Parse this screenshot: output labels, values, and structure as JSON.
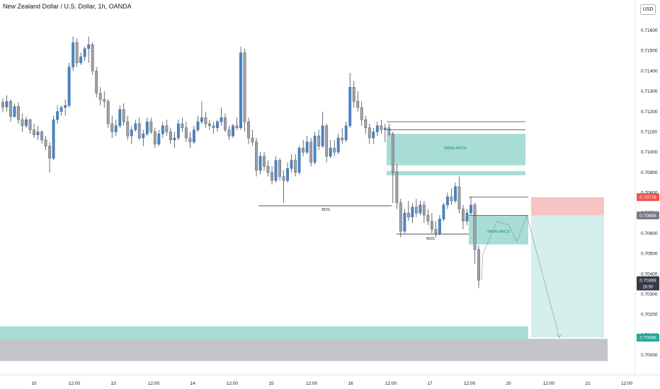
{
  "header": {
    "title": "New Zealand Dollar / U.S. Dollar, 1h, OANDA",
    "currency": "USD"
  },
  "chart_data": {
    "type": "candlestick",
    "title": "New Zealand Dollar / U.S. Dollar, 1h, OANDA",
    "ylim": [
      0.6993,
      0.7172
    ],
    "y_ticks": [
      "0.71600",
      "0.71500",
      "0.71400",
      "0.71300",
      "0.71200",
      "0.71100",
      "0.71000",
      "0.70900",
      "0.70800",
      "0.70700",
      "0.70600",
      "0.70500",
      "0.70400",
      "0.70300",
      "0.70200",
      "0.70100",
      "0.70000"
    ],
    "x_ticks": [
      "10",
      "12:00",
      "13",
      "12:00",
      "14",
      "12:00",
      "15",
      "12:00",
      "16",
      "12:00",
      "17",
      "12:00",
      "20",
      "12:00",
      "21",
      "12:00"
    ],
    "price_labels": [
      {
        "value": 0.70778,
        "text": "0.70778",
        "color": "#ef5350"
      },
      {
        "value": 0.70688,
        "text": "0.70688",
        "color": "#787b86"
      },
      {
        "value": 0.70369,
        "text": "0.70369",
        "sub": "26:50",
        "color": "#363a45"
      },
      {
        "value": 0.70086,
        "text": "0.70086",
        "color": "#26a69a"
      }
    ],
    "annotations": [
      {
        "type": "line",
        "label": "BOS",
        "y": 0.7077,
        "x_from": 0.7091,
        "x_to": 0.7077
      },
      {
        "type": "label",
        "text": "BOS"
      },
      {
        "type": "label",
        "text": "IMBALANCE"
      },
      {
        "type": "label",
        "text": "IMBALANCE"
      }
    ],
    "zones": [
      {
        "name": "imbalance-upper",
        "y_top": 0.7109,
        "y_bottom": 0.70935,
        "color": "#a8ddd6"
      },
      {
        "name": "imbalance-lower",
        "y_top": 0.7069,
        "y_bottom": 0.70545,
        "color": "#a8ddd6"
      },
      {
        "name": "support-zone",
        "y_top": 0.70142,
        "y_bottom": 0.7008,
        "color": "#a8ddd6"
      },
      {
        "name": "demand-zone",
        "y_top": 0.7008,
        "y_bottom": 0.6997,
        "color": "#c4c5c9"
      },
      {
        "name": "stop-zone",
        "y_top": 0.70778,
        "y_bottom": 0.70688,
        "color": "#f7c4c4"
      },
      {
        "name": "target-zone",
        "y_top": 0.70688,
        "y_bottom": 0.70086,
        "color": "#d5efec"
      }
    ],
    "candles": [
      [
        0.71245,
        0.71265,
        0.71195,
        0.71222
      ],
      [
        0.71222,
        0.7128,
        0.712,
        0.7125
      ],
      [
        0.7125,
        0.7126,
        0.7115,
        0.71175
      ],
      [
        0.71175,
        0.7124,
        0.7117,
        0.71225
      ],
      [
        0.71225,
        0.71245,
        0.7114,
        0.7116
      ],
      [
        0.7116,
        0.7119,
        0.711,
        0.7113
      ],
      [
        0.7113,
        0.71175,
        0.7112,
        0.7116
      ],
      [
        0.7116,
        0.71165,
        0.7109,
        0.7111
      ],
      [
        0.7111,
        0.7114,
        0.7107,
        0.71085
      ],
      [
        0.71085,
        0.7113,
        0.7106,
        0.711
      ],
      [
        0.711,
        0.7111,
        0.7104,
        0.7106
      ],
      [
        0.7106,
        0.7108,
        0.7101,
        0.7103
      ],
      [
        0.7103,
        0.7105,
        0.709,
        0.7097
      ],
      [
        0.7097,
        0.7118,
        0.7096,
        0.7116
      ],
      [
        0.7116,
        0.7123,
        0.7114,
        0.712
      ],
      [
        0.712,
        0.7123,
        0.7118,
        0.7122
      ],
      [
        0.7122,
        0.7126,
        0.7118,
        0.7123
      ],
      [
        0.7123,
        0.7144,
        0.7122,
        0.7142
      ],
      [
        0.7142,
        0.7157,
        0.714,
        0.7154
      ],
      [
        0.7154,
        0.7156,
        0.7142,
        0.7144
      ],
      [
        0.7144,
        0.7149,
        0.7143,
        0.7147
      ],
      [
        0.7147,
        0.7152,
        0.7145,
        0.7151
      ],
      [
        0.7151,
        0.7157,
        0.7144,
        0.7153
      ],
      [
        0.7153,
        0.7154,
        0.7138,
        0.714
      ],
      [
        0.714,
        0.7142,
        0.7127,
        0.7129
      ],
      [
        0.7129,
        0.7132,
        0.7123,
        0.7126
      ],
      [
        0.7126,
        0.713,
        0.7122,
        0.7125
      ],
      [
        0.7125,
        0.7126,
        0.7112,
        0.7114
      ],
      [
        0.7114,
        0.7118,
        0.7107,
        0.711
      ],
      [
        0.711,
        0.7116,
        0.7108,
        0.7113
      ],
      [
        0.7113,
        0.7123,
        0.7112,
        0.7121
      ],
      [
        0.7121,
        0.7124,
        0.7113,
        0.7115
      ],
      [
        0.7115,
        0.7118,
        0.7106,
        0.7108
      ],
      [
        0.7108,
        0.7113,
        0.7104,
        0.7111
      ],
      [
        0.7111,
        0.7116,
        0.711,
        0.7114
      ],
      [
        0.7114,
        0.7117,
        0.7106,
        0.7107
      ],
      [
        0.7107,
        0.7111,
        0.7103,
        0.7109
      ],
      [
        0.7109,
        0.7117,
        0.7108,
        0.7115
      ],
      [
        0.7115,
        0.7117,
        0.7109,
        0.711
      ],
      [
        0.711,
        0.7112,
        0.7102,
        0.7104
      ],
      [
        0.7104,
        0.7111,
        0.7103,
        0.7109
      ],
      [
        0.7109,
        0.7115,
        0.7107,
        0.7113
      ],
      [
        0.7113,
        0.7116,
        0.7108,
        0.711
      ],
      [
        0.711,
        0.7112,
        0.7104,
        0.7106
      ],
      [
        0.7106,
        0.711,
        0.7102,
        0.7107
      ],
      [
        0.7107,
        0.7116,
        0.7106,
        0.7114
      ],
      [
        0.7114,
        0.7117,
        0.711,
        0.7112
      ],
      [
        0.7112,
        0.7115,
        0.7105,
        0.7107
      ],
      [
        0.7107,
        0.711,
        0.7102,
        0.7105
      ],
      [
        0.7105,
        0.7113,
        0.7104,
        0.7111
      ],
      [
        0.7111,
        0.7118,
        0.711,
        0.7115
      ],
      [
        0.7115,
        0.7125,
        0.7114,
        0.7117
      ],
      [
        0.7117,
        0.712,
        0.7112,
        0.7114
      ],
      [
        0.7114,
        0.7116,
        0.7111,
        0.7113
      ],
      [
        0.7113,
        0.7115,
        0.7109,
        0.7112
      ],
      [
        0.7112,
        0.7116,
        0.711,
        0.7115
      ],
      [
        0.7115,
        0.7122,
        0.7113,
        0.7117
      ],
      [
        0.7117,
        0.7119,
        0.711,
        0.7111
      ],
      [
        0.7111,
        0.7113,
        0.7106,
        0.7108
      ],
      [
        0.7108,
        0.7114,
        0.7107,
        0.7113
      ],
      [
        0.7113,
        0.7117,
        0.7111,
        0.7112
      ],
      [
        0.7112,
        0.7152,
        0.7111,
        0.7149
      ],
      [
        0.7149,
        0.7151,
        0.711,
        0.7115
      ],
      [
        0.7115,
        0.7117,
        0.7104,
        0.7107
      ],
      [
        0.7107,
        0.7111,
        0.7103,
        0.7105
      ],
      [
        0.7105,
        0.7107,
        0.7088,
        0.7091
      ],
      [
        0.7091,
        0.71,
        0.7089,
        0.7098
      ],
      [
        0.7098,
        0.71,
        0.7091,
        0.7093
      ],
      [
        0.7093,
        0.7096,
        0.7088,
        0.709
      ],
      [
        0.709,
        0.7093,
        0.7084,
        0.7086
      ],
      [
        0.7086,
        0.7098,
        0.7085,
        0.7096
      ],
      [
        0.7096,
        0.7097,
        0.7086,
        0.7088
      ],
      [
        0.7088,
        0.7091,
        0.7075,
        0.7086
      ],
      [
        0.7086,
        0.7095,
        0.7085,
        0.7092
      ],
      [
        0.7092,
        0.7099,
        0.709,
        0.7096
      ],
      [
        0.7096,
        0.7099,
        0.7088,
        0.709
      ],
      [
        0.709,
        0.7103,
        0.7089,
        0.7102
      ],
      [
        0.7102,
        0.7106,
        0.7098,
        0.71
      ],
      [
        0.71,
        0.7108,
        0.7099,
        0.7105
      ],
      [
        0.7105,
        0.7107,
        0.7093,
        0.7095
      ],
      [
        0.7095,
        0.711,
        0.7094,
        0.7108
      ],
      [
        0.7108,
        0.7111,
        0.7101,
        0.7103
      ],
      [
        0.7103,
        0.712,
        0.7102,
        0.7113
      ],
      [
        0.7113,
        0.7114,
        0.7095,
        0.7098
      ],
      [
        0.7098,
        0.7106,
        0.7097,
        0.7102
      ],
      [
        0.7102,
        0.7106,
        0.7098,
        0.71
      ],
      [
        0.71,
        0.7109,
        0.7099,
        0.7107
      ],
      [
        0.7107,
        0.7112,
        0.7104,
        0.7106
      ],
      [
        0.7106,
        0.7115,
        0.7105,
        0.7113
      ],
      [
        0.7113,
        0.7139,
        0.7112,
        0.7132
      ],
      [
        0.7132,
        0.7135,
        0.7122,
        0.7125
      ],
      [
        0.7125,
        0.713,
        0.712,
        0.7122
      ],
      [
        0.7122,
        0.7125,
        0.7113,
        0.7116
      ],
      [
        0.7116,
        0.7118,
        0.7109,
        0.7112
      ],
      [
        0.7112,
        0.7114,
        0.7104,
        0.7107
      ],
      [
        0.7107,
        0.7112,
        0.7104,
        0.711
      ],
      [
        0.711,
        0.7115,
        0.7108,
        0.7113
      ],
      [
        0.7113,
        0.7116,
        0.7109,
        0.7111
      ],
      [
        0.7111,
        0.7114,
        0.7105,
        0.7112
      ],
      [
        0.7112,
        0.7114,
        0.7108,
        0.7109
      ],
      [
        0.7109,
        0.711,
        0.7075,
        0.709
      ],
      [
        0.709,
        0.7094,
        0.7072,
        0.7075
      ],
      [
        0.7075,
        0.7077,
        0.7058,
        0.7061
      ],
      [
        0.7061,
        0.7072,
        0.706,
        0.707
      ],
      [
        0.707,
        0.7076,
        0.7066,
        0.7068
      ],
      [
        0.7068,
        0.7075,
        0.7065,
        0.7073
      ],
      [
        0.7073,
        0.7077,
        0.7068,
        0.707
      ],
      [
        0.707,
        0.7076,
        0.7069,
        0.7074
      ],
      [
        0.7074,
        0.7076,
        0.7065,
        0.7069
      ],
      [
        0.7069,
        0.7072,
        0.7064,
        0.7066
      ],
      [
        0.7066,
        0.707,
        0.706,
        0.7062
      ],
      [
        0.7062,
        0.7066,
        0.7058,
        0.706
      ],
      [
        0.706,
        0.7069,
        0.7059,
        0.7067
      ],
      [
        0.7067,
        0.7075,
        0.7066,
        0.7074
      ],
      [
        0.7074,
        0.708,
        0.7072,
        0.7078
      ],
      [
        0.7078,
        0.7082,
        0.7074,
        0.7076
      ],
      [
        0.7076,
        0.7085,
        0.7075,
        0.7083
      ],
      [
        0.7083,
        0.7088,
        0.707,
        0.7072
      ],
      [
        0.7072,
        0.7074,
        0.7062,
        0.7066
      ],
      [
        0.7066,
        0.7072,
        0.7064,
        0.707
      ],
      [
        0.707,
        0.7078,
        0.7069,
        0.7074
      ],
      [
        0.7074,
        0.7075,
        0.7045,
        0.7052
      ],
      [
        0.7052,
        0.7054,
        0.7033,
        0.70369
      ]
    ],
    "projection_path": [
      [
        0.70369,
        0.7038
      ],
      [
        0.705,
        0.7048
      ],
      [
        0.7066,
        0.7056
      ],
      [
        0.7064,
        0.7063
      ],
      [
        0.7056,
        0.706
      ],
      [
        0.70688,
        0.7068
      ],
      [
        0.70086,
        0.701
      ]
    ]
  }
}
